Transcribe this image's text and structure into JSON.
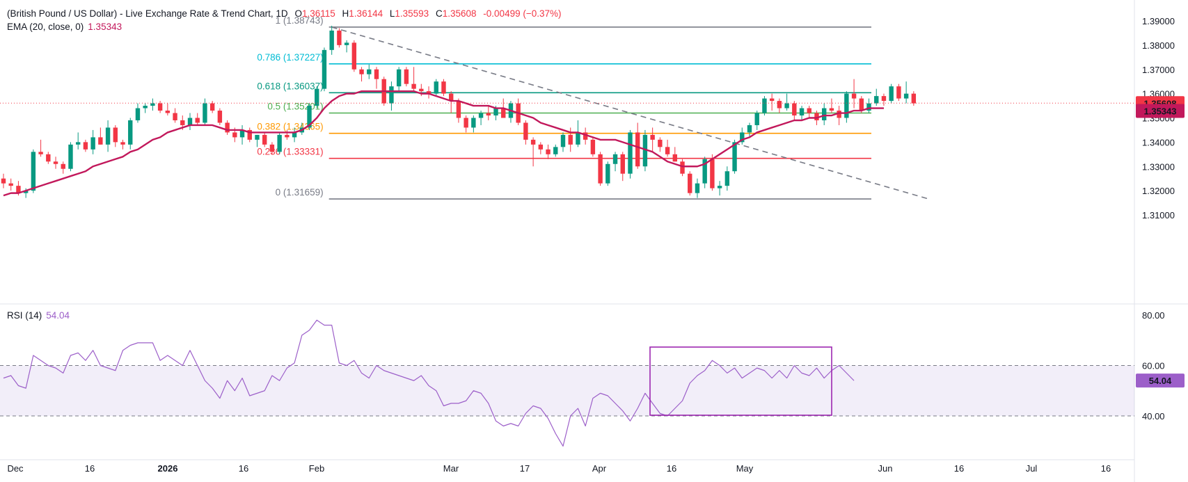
{
  "header": {
    "title": "(British Pound / US Dollar) - Live Exchange Rate & Trend Chart, 1D",
    "open_key": "O",
    "open": "1.36115",
    "high_key": "H",
    "high": "1.36144",
    "low_key": "L",
    "low": "1.35593",
    "close_key": "C",
    "close": "1.35608",
    "change": "-0.00499 (−0.37%)"
  },
  "ema": {
    "label": "EMA (20, close, 0)",
    "value": "1.35343"
  },
  "rsi": {
    "label": "RSI (14)",
    "value": "54.04"
  },
  "colors": {
    "up": "#089981",
    "down": "#f23645",
    "ema": "#c2185b",
    "rsi": "#9c5fc9",
    "fib_0": "#787b86",
    "fib_0236": "#f23645",
    "fib_0382": "#ff9800",
    "fib_05": "#4caf50",
    "fib_0618": "#089981",
    "fib_0786": "#00bcd4",
    "fib_1": "#787b86",
    "box": "#9c27b0"
  },
  "chart_data": [
    {
      "type": "candlestick",
      "price_axis": {
        "ticks": [
          "1.39000",
          "1.38000",
          "1.37000",
          "1.36000",
          "1.35000",
          "1.34000",
          "1.33000",
          "1.32000",
          "1.31000"
        ],
        "range": [
          1.31,
          1.39
        ]
      },
      "x_axis": {
        "ticks": [
          "Dec",
          "16",
          "2026",
          "16",
          "Feb",
          "Mar",
          "17",
          "Apr",
          "16",
          "May",
          "Jun",
          "16",
          "Jul",
          "16"
        ],
        "bold": [
          "2026"
        ]
      },
      "last_price_tag": "1.35608",
      "ema_tag": "1.35343",
      "fib_levels": [
        {
          "ratio": "1",
          "price": "1.38743",
          "text": "1 (1.38743)"
        },
        {
          "ratio": "0.786",
          "price": "1.37227",
          "text": "0.786 (1.37227)"
        },
        {
          "ratio": "0.618",
          "price": "1.36037",
          "text": "0.618 (1.36037)"
        },
        {
          "ratio": "0.5",
          "price": "1.35201",
          "text": "0.5 (1.35201)"
        },
        {
          "ratio": "0.382",
          "price": "1.34365",
          "text": "0.382 (1.34365)"
        },
        {
          "ratio": "0.236",
          "price": "1.33331",
          "text": "0.236 (1.33331)"
        },
        {
          "ratio": "0",
          "price": "1.31659",
          "text": "0 (1.31659)"
        }
      ],
      "candles": [
        [
          1.325,
          1.327,
          1.321,
          1.323
        ],
        [
          1.323,
          1.325,
          1.32,
          1.322
        ],
        [
          1.322,
          1.324,
          1.318,
          1.319
        ],
        [
          1.319,
          1.321,
          1.317,
          1.32
        ],
        [
          1.32,
          1.337,
          1.319,
          1.336
        ],
        [
          1.336,
          1.341,
          1.334,
          1.335
        ],
        [
          1.335,
          1.336,
          1.331,
          1.332
        ],
        [
          1.332,
          1.334,
          1.329,
          1.331
        ],
        [
          1.331,
          1.332,
          1.327,
          1.329
        ],
        [
          1.329,
          1.34,
          1.328,
          1.339
        ],
        [
          1.339,
          1.344,
          1.337,
          1.34
        ],
        [
          1.34,
          1.341,
          1.336,
          1.337
        ],
        [
          1.337,
          1.345,
          1.335,
          1.342
        ],
        [
          1.342,
          1.346,
          1.339,
          1.339
        ],
        [
          1.339,
          1.349,
          1.336,
          1.346
        ],
        [
          1.346,
          1.347,
          1.338,
          1.34
        ],
        [
          1.34,
          1.341,
          1.337,
          1.339
        ],
        [
          1.339,
          1.35,
          1.337,
          1.349
        ],
        [
          1.349,
          1.356,
          1.348,
          1.354
        ],
        [
          1.354,
          1.356,
          1.352,
          1.355
        ],
        [
          1.355,
          1.358,
          1.353,
          1.356
        ],
        [
          1.356,
          1.357,
          1.352,
          1.353
        ],
        [
          1.353,
          1.356,
          1.351,
          1.352
        ],
        [
          1.352,
          1.354,
          1.348,
          1.349
        ],
        [
          1.349,
          1.351,
          1.345,
          1.347
        ],
        [
          1.347,
          1.352,
          1.345,
          1.35
        ],
        [
          1.35,
          1.352,
          1.347,
          1.348
        ],
        [
          1.348,
          1.358,
          1.347,
          1.356
        ],
        [
          1.356,
          1.357,
          1.352,
          1.353
        ],
        [
          1.353,
          1.354,
          1.347,
          1.348
        ],
        [
          1.348,
          1.349,
          1.343,
          1.344
        ],
        [
          1.344,
          1.346,
          1.34,
          1.342
        ],
        [
          1.342,
          1.347,
          1.339,
          1.345
        ],
        [
          1.345,
          1.346,
          1.34,
          1.341
        ],
        [
          1.341,
          1.343,
          1.338,
          1.343
        ],
        [
          1.343,
          1.344,
          1.338,
          1.339
        ],
        [
          1.339,
          1.34,
          1.335,
          1.336
        ],
        [
          1.336,
          1.344,
          1.335,
          1.343
        ],
        [
          1.343,
          1.345,
          1.341,
          1.342
        ],
        [
          1.342,
          1.346,
          1.34,
          1.344
        ],
        [
          1.344,
          1.348,
          1.343,
          1.346
        ],
        [
          1.346,
          1.356,
          1.345,
          1.355
        ],
        [
          1.355,
          1.363,
          1.354,
          1.362
        ],
        [
          1.362,
          1.379,
          1.361,
          1.378
        ],
        [
          1.378,
          1.388,
          1.376,
          1.386
        ],
        [
          1.386,
          1.387,
          1.379,
          1.38
        ],
        [
          1.38,
          1.382,
          1.377,
          1.381
        ],
        [
          1.381,
          1.382,
          1.369,
          1.37
        ],
        [
          1.37,
          1.371,
          1.365,
          1.368
        ],
        [
          1.368,
          1.372,
          1.366,
          1.37
        ],
        [
          1.37,
          1.371,
          1.362,
          1.366
        ],
        [
          1.366,
          1.367,
          1.355,
          1.356
        ],
        [
          1.356,
          1.365,
          1.353,
          1.363
        ],
        [
          1.363,
          1.371,
          1.361,
          1.37
        ],
        [
          1.37,
          1.371,
          1.363,
          1.364
        ],
        [
          1.364,
          1.371,
          1.361,
          1.362
        ],
        [
          1.362,
          1.364,
          1.359,
          1.361
        ],
        [
          1.361,
          1.363,
          1.358,
          1.36
        ],
        [
          1.36,
          1.366,
          1.359,
          1.365
        ],
        [
          1.365,
          1.366,
          1.359,
          1.36
        ],
        [
          1.36,
          1.361,
          1.352,
          1.357
        ],
        [
          1.357,
          1.358,
          1.348,
          1.35
        ],
        [
          1.35,
          1.351,
          1.344,
          1.346
        ],
        [
          1.346,
          1.351,
          1.344,
          1.35
        ],
        [
          1.35,
          1.353,
          1.347,
          1.352
        ],
        [
          1.352,
          1.355,
          1.349,
          1.351
        ],
        [
          1.351,
          1.355,
          1.349,
          1.354
        ],
        [
          1.354,
          1.358,
          1.35,
          1.35
        ],
        [
          1.35,
          1.357,
          1.348,
          1.356
        ],
        [
          1.356,
          1.358,
          1.347,
          1.348
        ],
        [
          1.348,
          1.349,
          1.339,
          1.341
        ],
        [
          1.341,
          1.342,
          1.33,
          1.339
        ],
        [
          1.339,
          1.34,
          1.335,
          1.337
        ],
        [
          1.337,
          1.339,
          1.333,
          1.335
        ],
        [
          1.335,
          1.339,
          1.334,
          1.338
        ],
        [
          1.338,
          1.344,
          1.336,
          1.343
        ],
        [
          1.343,
          1.346,
          1.336,
          1.339
        ],
        [
          1.339,
          1.349,
          1.338,
          1.344
        ],
        [
          1.344,
          1.346,
          1.339,
          1.341
        ],
        [
          1.341,
          1.342,
          1.334,
          1.335
        ],
        [
          1.335,
          1.336,
          1.322,
          1.323
        ],
        [
          1.323,
          1.332,
          1.322,
          1.331
        ],
        [
          1.331,
          1.336,
          1.328,
          1.335
        ],
        [
          1.335,
          1.336,
          1.324,
          1.327
        ],
        [
          1.327,
          1.345,
          1.325,
          1.344
        ],
        [
          1.344,
          1.348,
          1.329,
          1.33
        ],
        [
          1.33,
          1.345,
          1.328,
          1.343
        ],
        [
          1.343,
          1.346,
          1.336,
          1.341
        ],
        [
          1.341,
          1.342,
          1.336,
          1.338
        ],
        [
          1.338,
          1.341,
          1.334,
          1.335
        ],
        [
          1.335,
          1.338,
          1.332,
          1.332
        ],
        [
          1.332,
          1.333,
          1.326,
          1.327
        ],
        [
          1.327,
          1.328,
          1.318,
          1.319
        ],
        [
          1.319,
          1.325,
          1.317,
          1.323
        ],
        [
          1.323,
          1.334,
          1.321,
          1.333
        ],
        [
          1.333,
          1.335,
          1.32,
          1.321
        ],
        [
          1.321,
          1.324,
          1.318,
          1.322
        ],
        [
          1.322,
          1.33,
          1.32,
          1.328
        ],
        [
          1.328,
          1.341,
          1.327,
          1.34
        ],
        [
          1.34,
          1.346,
          1.339,
          1.344
        ],
        [
          1.344,
          1.348,
          1.342,
          1.347
        ],
        [
          1.347,
          1.353,
          1.345,
          1.352
        ],
        [
          1.352,
          1.359,
          1.351,
          1.358
        ],
        [
          1.358,
          1.36,
          1.353,
          1.357
        ],
        [
          1.357,
          1.358,
          1.352,
          1.354
        ],
        [
          1.354,
          1.36,
          1.353,
          1.356
        ],
        [
          1.356,
          1.357,
          1.349,
          1.351
        ],
        [
          1.351,
          1.355,
          1.349,
          1.354
        ],
        [
          1.354,
          1.355,
          1.35,
          1.352
        ],
        [
          1.352,
          1.353,
          1.347,
          1.349
        ],
        [
          1.349,
          1.356,
          1.347,
          1.354
        ],
        [
          1.354,
          1.358,
          1.352,
          1.353
        ],
        [
          1.353,
          1.355,
          1.347,
          1.35
        ],
        [
          1.35,
          1.361,
          1.348,
          1.36
        ],
        [
          1.36,
          1.366,
          1.354,
          1.358
        ],
        [
          1.358,
          1.359,
          1.352,
          1.353
        ],
        [
          1.353,
          1.358,
          1.352,
          1.356
        ],
        [
          1.356,
          1.362,
          1.355,
          1.359
        ],
        [
          1.359,
          1.36,
          1.355,
          1.357
        ],
        [
          1.357,
          1.364,
          1.356,
          1.363
        ],
        [
          1.363,
          1.364,
          1.357,
          1.358
        ],
        [
          1.358,
          1.365,
          1.356,
          1.36
        ],
        [
          1.36,
          1.361,
          1.355,
          1.356
        ]
      ],
      "ema20": [
        1.318,
        1.319,
        1.319,
        1.32,
        1.321,
        1.322,
        1.323,
        1.324,
        1.325,
        1.326,
        1.327,
        1.328,
        1.33,
        1.331,
        1.332,
        1.333,
        1.334,
        1.336,
        1.337,
        1.339,
        1.341,
        1.342,
        1.344,
        1.345,
        1.346,
        1.347,
        1.347,
        1.347,
        1.347,
        1.346,
        1.345,
        1.345,
        1.345,
        1.344,
        1.344,
        1.344,
        1.344,
        1.344,
        1.344,
        1.344,
        1.345,
        1.347,
        1.35,
        1.354,
        1.357,
        1.359,
        1.36,
        1.36,
        1.361,
        1.361,
        1.361,
        1.361,
        1.361,
        1.361,
        1.361,
        1.361,
        1.36,
        1.36,
        1.359,
        1.358,
        1.357,
        1.357,
        1.356,
        1.355,
        1.355,
        1.355,
        1.354,
        1.354,
        1.353,
        1.352,
        1.351,
        1.35,
        1.348,
        1.347,
        1.346,
        1.345,
        1.344,
        1.344,
        1.343,
        1.342,
        1.341,
        1.341,
        1.341,
        1.34,
        1.339,
        1.338,
        1.337,
        1.336,
        1.334,
        1.332,
        1.331,
        1.33,
        1.33,
        1.33,
        1.331,
        1.333,
        1.335,
        1.337,
        1.339,
        1.341,
        1.342,
        1.344,
        1.345,
        1.346,
        1.347,
        1.348,
        1.349,
        1.349,
        1.35,
        1.35,
        1.351,
        1.351,
        1.352,
        1.352,
        1.353,
        1.353,
        1.354,
        1.354,
        1.354
      ],
      "trendline": {
        "from": [
          44,
          1.38743
        ],
        "to": [
          124,
          1.31659
        ]
      }
    },
    {
      "type": "line",
      "name": "RSI (14)",
      "y_ticks": [
        "80.00",
        "60.00",
        "40.00"
      ],
      "range": [
        22,
        88
      ],
      "band": [
        40,
        60
      ],
      "value_tag": "54.04",
      "values": [
        55,
        56,
        52,
        51,
        64,
        62,
        60,
        59,
        57,
        64,
        65,
        62,
        66,
        60,
        59,
        58,
        66,
        68,
        69,
        69,
        69,
        62,
        64,
        62,
        60,
        66,
        60,
        54,
        51,
        47,
        54,
        50,
        55,
        48,
        49,
        50,
        56,
        54,
        59,
        61,
        72,
        74,
        78,
        76,
        76,
        61,
        60,
        62,
        57,
        55,
        60,
        58,
        57,
        56,
        55,
        54,
        56,
        52,
        50,
        44,
        45,
        45,
        46,
        50,
        49,
        45,
        38,
        36,
        37,
        36,
        41,
        44,
        43,
        39,
        33,
        28,
        40,
        43,
        36,
        47,
        49,
        48,
        45,
        42,
        38,
        43,
        49,
        45,
        41,
        40,
        43,
        46,
        53,
        56,
        58,
        62,
        60,
        57,
        59,
        55,
        57,
        59,
        58,
        55,
        58,
        55,
        60,
        57,
        56,
        59,
        55,
        58,
        60,
        57,
        54
      ]
    }
  ]
}
